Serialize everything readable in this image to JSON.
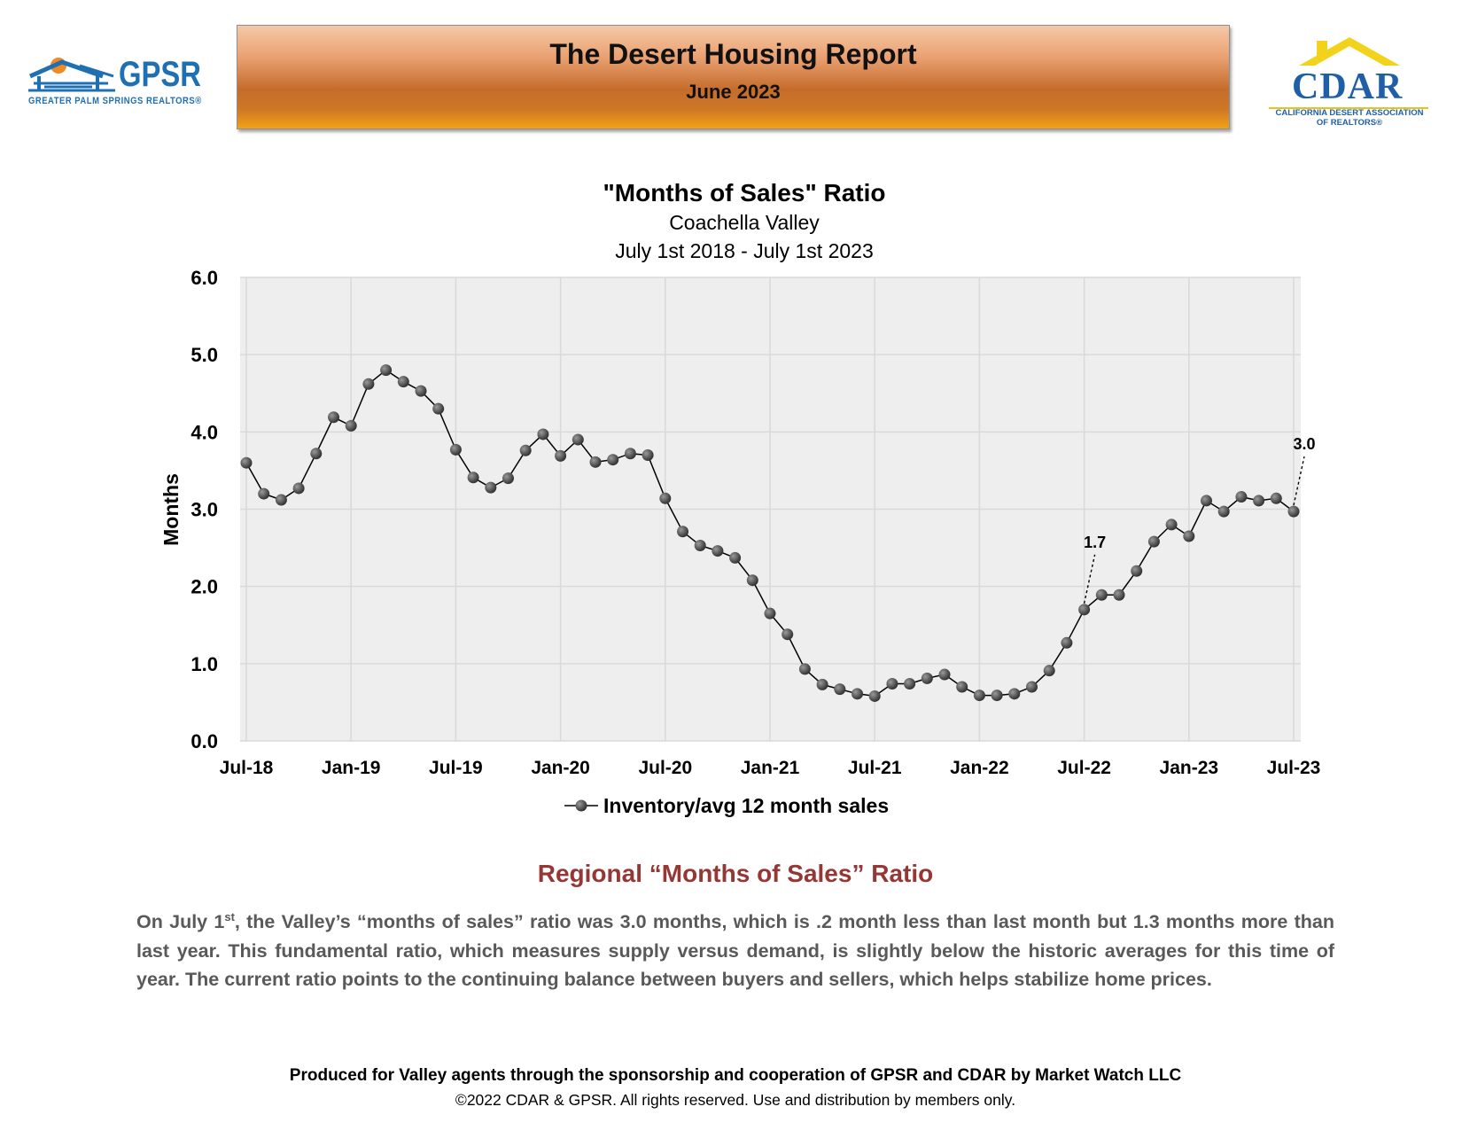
{
  "header": {
    "gpsr_logo": {
      "word": "GPSR",
      "tagline": "GREATER PALM SPRINGS REALTORS®"
    },
    "banner_title": "The Desert Housing Report",
    "banner_subtitle": "June 2023",
    "cdar_logo": {
      "word": "CDAR",
      "line1": "CALIFORNIA DESERT ASSOCIATION",
      "line2": "OF REALTORS®"
    },
    "colors": {
      "gpsr_blue": "#1f6fb3",
      "cdar_blue": "#1f5fa8",
      "cdar_yellow": "#f2d21b",
      "banner_orange": "#c56c2c"
    }
  },
  "chart_data": {
    "type": "line",
    "title": "\"Months of Sales\" Ratio",
    "subtitle": "Coachella Valley",
    "subtitle2": "July 1st 2018 - July 1st 2023",
    "ylabel": "Months",
    "ylim": [
      0,
      6
    ],
    "yticks": [
      "0.0",
      "1.0",
      "2.0",
      "3.0",
      "4.0",
      "5.0",
      "6.0"
    ],
    "xticks": [
      "Jul-18",
      "Jan-19",
      "Jul-19",
      "Jan-20",
      "Jul-20",
      "Jan-21",
      "Jul-21",
      "Jan-22",
      "Jul-22",
      "Jan-23",
      "Jul-23"
    ],
    "grid": true,
    "legend": "bottom-center",
    "series": [
      {
        "name": "Inventory/avg 12 month sales",
        "x": [
          "Jul-18",
          "Aug-18",
          "Sep-18",
          "Oct-18",
          "Nov-18",
          "Dec-18",
          "Jan-19",
          "Feb-19",
          "Mar-19",
          "Apr-19",
          "May-19",
          "Jun-19",
          "Jul-19",
          "Aug-19",
          "Sep-19",
          "Oct-19",
          "Nov-19",
          "Dec-19",
          "Jan-20",
          "Feb-20",
          "Mar-20",
          "Apr-20",
          "May-20",
          "Jun-20",
          "Jul-20",
          "Aug-20",
          "Sep-20",
          "Oct-20",
          "Nov-20",
          "Dec-20",
          "Jan-21",
          "Feb-21",
          "Mar-21",
          "Apr-21",
          "May-21",
          "Jun-21",
          "Jul-21",
          "Aug-21",
          "Sep-21",
          "Oct-21",
          "Nov-21",
          "Dec-21",
          "Jan-22",
          "Feb-22",
          "Mar-22",
          "Apr-22",
          "May-22",
          "Jun-22",
          "Jul-22",
          "Aug-22",
          "Sep-22",
          "Oct-22",
          "Nov-22",
          "Dec-22",
          "Jan-23",
          "Feb-23",
          "Mar-23",
          "Apr-23",
          "May-23",
          "Jun-23",
          "Jul-23"
        ],
        "values": [
          3.6,
          3.2,
          3.12,
          3.27,
          3.72,
          4.19,
          4.08,
          4.62,
          4.8,
          4.65,
          4.53,
          4.3,
          3.77,
          3.41,
          3.28,
          3.4,
          3.76,
          3.97,
          3.69,
          3.9,
          3.61,
          3.64,
          3.72,
          3.7,
          3.14,
          2.71,
          2.53,
          2.46,
          2.37,
          2.08,
          1.65,
          1.38,
          0.93,
          0.73,
          0.67,
          0.61,
          0.58,
          0.74,
          0.74,
          0.81,
          0.86,
          0.7,
          0.59,
          0.59,
          0.61,
          0.7,
          0.91,
          1.27,
          1.7,
          1.89,
          1.89,
          2.2,
          2.58,
          2.8,
          2.65,
          3.11,
          2.97,
          3.16,
          3.11,
          3.14,
          2.97
        ]
      }
    ],
    "annotations": [
      {
        "x": "Jul-22",
        "label": "1.7"
      },
      {
        "x": "Jul-23",
        "label": "3.0"
      }
    ],
    "colors": {
      "plot_bg": "#eeeeee",
      "grid": "#d9d9d9",
      "line": "#000000",
      "marker": "#333333"
    }
  },
  "section": {
    "title": "Regional “Months of Sales” Ratio",
    "body_prefix": "On July 1",
    "body_sup": "st",
    "body_rest": ", the Valley’s “months of sales” ratio was 3.0 months, which is .2 month less than last month but 1.3 months more than last year. This fundamental ratio, which measures supply versus demand, is slightly below the historic averages for this time of year. The current ratio points to the continuing balance between buyers and sellers, which helps stabilize home prices."
  },
  "footer": {
    "line1": "Produced for Valley agents through the sponsorship and cooperation of GPSR and CDAR by Market Watch LLC",
    "line2": "©2022 CDAR & GPSR.  All rights reserved.  Use and distribution by members only."
  }
}
